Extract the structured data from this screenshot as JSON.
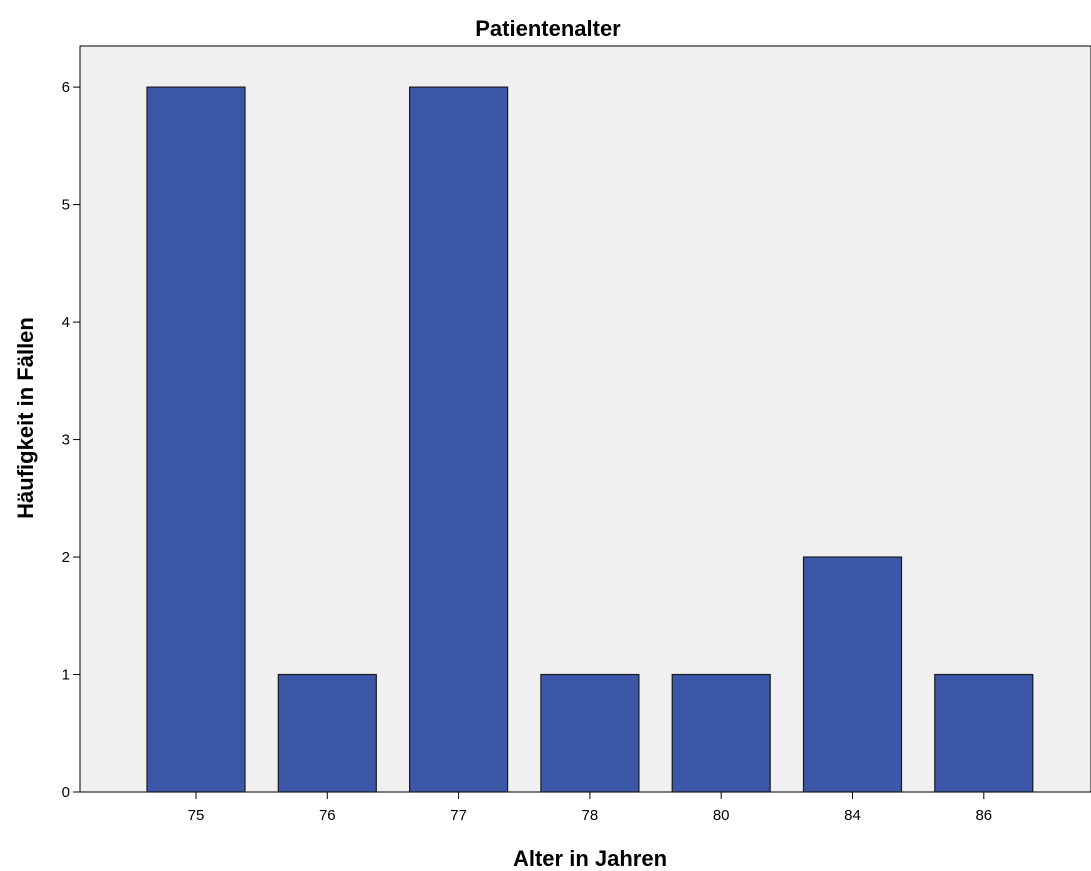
{
  "chart_data": {
    "type": "bar",
    "title": "Patientenalter",
    "xlabel": "Alter in Jahren",
    "ylabel": "Häufigkeit in Fällen",
    "categories": [
      "75",
      "76",
      "77",
      "78",
      "80",
      "84",
      "86"
    ],
    "values": [
      6,
      1,
      6,
      1,
      1,
      2,
      1
    ],
    "ylim": [
      0,
      6.35
    ],
    "yticks": [
      0,
      1,
      2,
      3,
      4,
      5,
      6
    ],
    "grid": false,
    "bar_color": "#3d57a8",
    "bar_border": "#1a1a1a",
    "plot_background": "#f0f0f0"
  }
}
